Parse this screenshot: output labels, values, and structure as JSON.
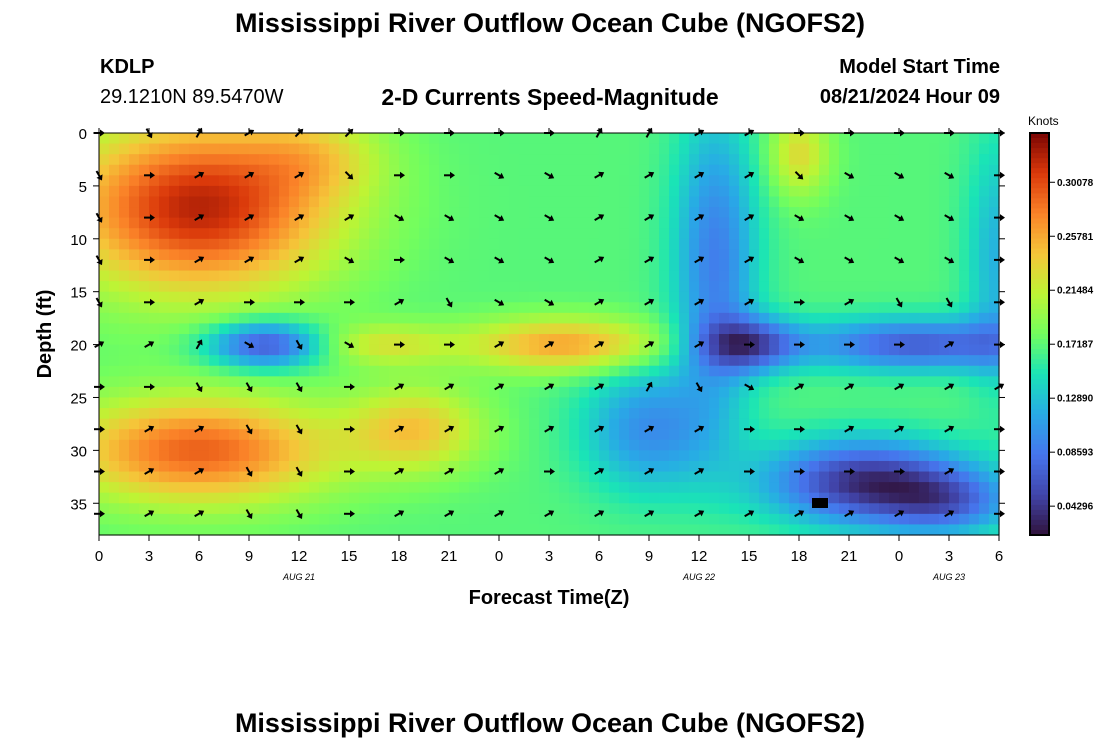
{
  "header": {
    "title": "Mississippi River Outflow Ocean Cube (NGOFS2)",
    "station": "KDLP",
    "coordinates": "29.1210N  89.5470W",
    "subtitle": "2-D Currents Speed-Magnitude",
    "model_start_label": "Model Start Time",
    "model_start_time": "08/21/2024 Hour 09"
  },
  "footer": {
    "title": "Mississippi River Outflow Ocean Cube (NGOFS2)"
  },
  "chart_data": {
    "type": "heatmap",
    "xlabel": "Forecast Time(Z)",
    "ylabel": "Depth (ft)",
    "x_ticks": [
      "0",
      "3",
      "6",
      "9",
      "12",
      "15",
      "18",
      "21",
      "0",
      "3",
      "6",
      "9",
      "12",
      "15",
      "18",
      "21",
      "0",
      "3",
      "6"
    ],
    "date_labels": [
      {
        "label": "AUG 21",
        "hour": 12
      },
      {
        "label": "AUG 22",
        "hour": 36
      },
      {
        "label": "AUG 23",
        "hour": 51
      }
    ],
    "xlim": [
      0,
      54
    ],
    "ylim": [
      0,
      38
    ],
    "y_ticks": [
      0,
      5,
      10,
      15,
      20,
      25,
      30,
      35
    ],
    "colorbar": {
      "title": "Knots",
      "ticks": [
        "0.30078",
        "0.25781",
        "0.21484",
        "0.17187",
        "0.12890",
        "0.08593",
        "0.04296"
      ],
      "range": [
        0.02,
        0.34
      ]
    },
    "vector_times": [
      0,
      3,
      6,
      9,
      12,
      15,
      18,
      21,
      24,
      27,
      30,
      33,
      36,
      39,
      42,
      45,
      48,
      51,
      54
    ],
    "vector_depths": [
      0,
      4,
      8,
      12,
      16,
      20,
      24,
      28,
      32,
      36
    ],
    "directions_deg": [
      [
        0,
        60,
        -60,
        -30,
        -45,
        -45,
        0,
        0,
        0,
        0,
        -60,
        -60,
        -30,
        -30,
        0,
        0,
        0,
        0,
        0
      ],
      [
        60,
        0,
        -30,
        -30,
        -30,
        45,
        0,
        0,
        30,
        30,
        -30,
        -30,
        -30,
        -30,
        45,
        30,
        30,
        30,
        0
      ],
      [
        60,
        0,
        -30,
        -30,
        -30,
        -30,
        30,
        30,
        30,
        30,
        -30,
        -30,
        -30,
        -30,
        30,
        30,
        30,
        30,
        0
      ],
      [
        60,
        0,
        -30,
        -30,
        -30,
        30,
        0,
        30,
        30,
        30,
        -30,
        -30,
        -30,
        -30,
        30,
        30,
        30,
        30,
        0
      ],
      [
        60,
        0,
        -30,
        0,
        0,
        0,
        -30,
        60,
        30,
        30,
        -30,
        -30,
        -30,
        -30,
        0,
        -30,
        60,
        60,
        0
      ],
      [
        -30,
        -30,
        -60,
        30,
        60,
        30,
        0,
        0,
        -30,
        -30,
        -30,
        -30,
        -30,
        0,
        0,
        0,
        0,
        -30,
        0
      ],
      [
        0,
        0,
        60,
        60,
        60,
        0,
        -30,
        -30,
        -30,
        -30,
        -30,
        -60,
        60,
        30,
        -30,
        -30,
        -30,
        -30,
        -30
      ],
      [
        0,
        -30,
        -30,
        60,
        60,
        0,
        -30,
        -30,
        -30,
        -30,
        -30,
        -30,
        -30,
        0,
        0,
        -30,
        -30,
        -30,
        0
      ],
      [
        0,
        -30,
        -30,
        60,
        60,
        0,
        -30,
        -30,
        -30,
        0,
        -30,
        -30,
        -30,
        0,
        0,
        0,
        0,
        -30,
        0
      ],
      [
        0,
        -30,
        -30,
        60,
        60,
        0,
        -30,
        -30,
        -30,
        -30,
        -30,
        -30,
        -30,
        -30,
        -30,
        -30,
        -30,
        -30,
        0
      ]
    ]
  }
}
